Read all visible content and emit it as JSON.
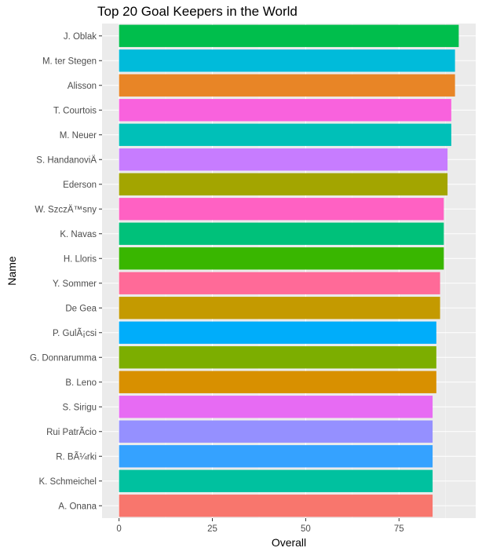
{
  "chart_data": {
    "type": "bar",
    "orientation": "horizontal",
    "title": "Top 20 Goal Keepers in the World",
    "xlabel": "Overall",
    "ylabel": "Name",
    "xlim": [
      0,
      91
    ],
    "x_ticks": [
      0,
      25,
      50,
      75
    ],
    "grid": true,
    "legend": "none",
    "background": "#EBEBEB",
    "categories": [
      "J. Oblak",
      "M. ter Stegen",
      "Alisson",
      "T. Courtois",
      "M. Neuer",
      "S. HandanoviÄ",
      "Ederson",
      "W. SzczÄ™sny",
      "K. Navas",
      "H. Lloris",
      "Y. Sommer",
      "De Gea",
      "P. GulÃ¡csi",
      "G. Donnarumma",
      "B. Leno",
      "S. Sirigu",
      "Rui PatrÃ­cio",
      "R. BÃ¼rki",
      "K. Schmeichel",
      "A. Onana"
    ],
    "values": [
      91,
      90,
      90,
      89,
      89,
      88,
      88,
      87,
      87,
      87,
      86,
      86,
      85,
      85,
      85,
      84,
      84,
      84,
      84,
      84
    ],
    "colors": [
      "#00BE4C",
      "#00BBDA",
      "#E88526",
      "#F962DD",
      "#00C0B8",
      "#C77CFF",
      "#A3A500",
      "#FF61C3",
      "#00C17A",
      "#39B600",
      "#FF6A98",
      "#C49A00",
      "#00ADFA",
      "#7CAE00",
      "#D89000",
      "#E76BF3",
      "#9590FF",
      "#35A2FF",
      "#00C19F",
      "#F8766D"
    ]
  }
}
